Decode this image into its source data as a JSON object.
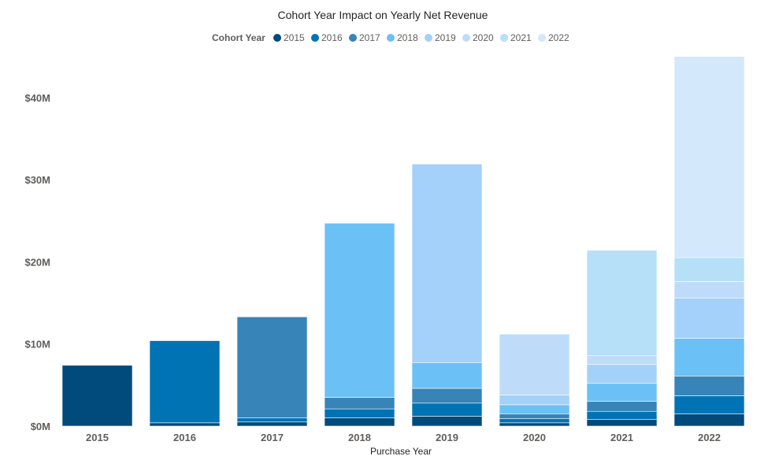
{
  "chart_data": {
    "type": "bar",
    "stacked": true,
    "title": "Cohort Year Impact on Yearly Net Revenue",
    "xlabel": "Purchase Year",
    "ylabel": "",
    "legend_title": "Cohort Year",
    "legend_position": "top-center",
    "grid": false,
    "categories": [
      "2015",
      "2016",
      "2017",
      "2018",
      "2019",
      "2020",
      "2021",
      "2022"
    ],
    "y_ticks": [
      {
        "value": 0,
        "label": "$0M"
      },
      {
        "value": 10,
        "label": "$10M"
      },
      {
        "value": 20,
        "label": "$20M"
      },
      {
        "value": 30,
        "label": "$30M"
      },
      {
        "value": 40,
        "label": "$40M"
      }
    ],
    "ylim": [
      0,
      45
    ],
    "series": [
      {
        "name": "2015",
        "color": "#004a7c",
        "values": [
          7.4,
          0.4,
          0.5,
          1.0,
          1.2,
          0.4,
          0.8,
          1.5
        ]
      },
      {
        "name": "2016",
        "color": "#0073b5",
        "values": [
          0,
          10.0,
          0.5,
          1.1,
          1.6,
          0.5,
          1.0,
          2.2
        ]
      },
      {
        "name": "2017",
        "color": "#3784b9",
        "values": [
          0,
          0,
          12.3,
          1.4,
          1.8,
          0.6,
          1.2,
          2.4
        ]
      },
      {
        "name": "2018",
        "color": "#6bc1f5",
        "values": [
          0,
          0,
          0,
          21.2,
          3.1,
          1.1,
          2.2,
          4.6
        ]
      },
      {
        "name": "2019",
        "color": "#a3d1f9",
        "values": [
          0,
          0,
          0,
          0,
          24.2,
          1.2,
          2.3,
          4.9
        ]
      },
      {
        "name": "2020",
        "color": "#bedcf9",
        "values": [
          0,
          0,
          0,
          0,
          0,
          7.4,
          1.1,
          2.0
        ]
      },
      {
        "name": "2021",
        "color": "#b5e0f8",
        "values": [
          0,
          0,
          0,
          0,
          0,
          0,
          12.8,
          2.9
        ]
      },
      {
        "name": "2022",
        "color": "#d3e8fb",
        "values": [
          0,
          0,
          0,
          0,
          0,
          0,
          0,
          24.5
        ]
      }
    ]
  }
}
